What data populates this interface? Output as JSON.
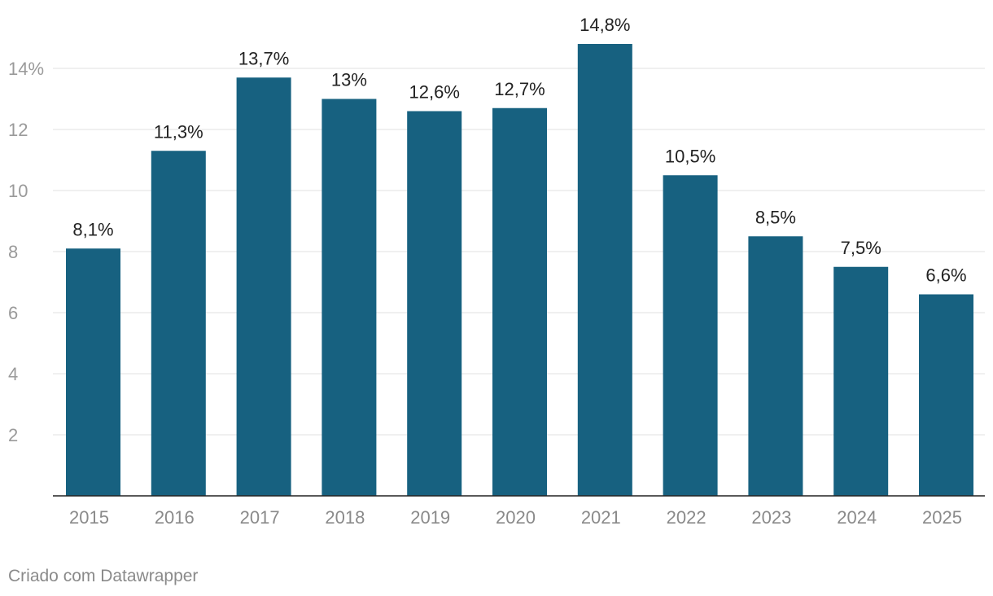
{
  "chart_data": {
    "type": "bar",
    "categories": [
      "2015",
      "2016",
      "2017",
      "2018",
      "2019",
      "2020",
      "2021",
      "2022",
      "2023",
      "2024",
      "2025"
    ],
    "values": [
      8.1,
      11.3,
      13.7,
      13,
      12.6,
      12.7,
      14.8,
      10.5,
      8.5,
      7.5,
      6.6
    ],
    "value_labels": [
      "8,1%",
      "11,3%",
      "13,7%",
      "13%",
      "12,6%",
      "12,7%",
      "14,8%",
      "10,5%",
      "8,5%",
      "7,5%",
      "6,6%"
    ],
    "y_ticks": [
      2,
      4,
      6,
      8,
      10,
      12,
      14
    ],
    "y_tick_labels": [
      "2",
      "4",
      "6",
      "8",
      "10",
      "12",
      "14%"
    ],
    "ylim": [
      0,
      14.8
    ],
    "grid": true,
    "bar_color": "#176180",
    "title": "",
    "xlabel": "",
    "ylabel": ""
  },
  "footer": {
    "credit": "Criado com Datawrapper"
  }
}
